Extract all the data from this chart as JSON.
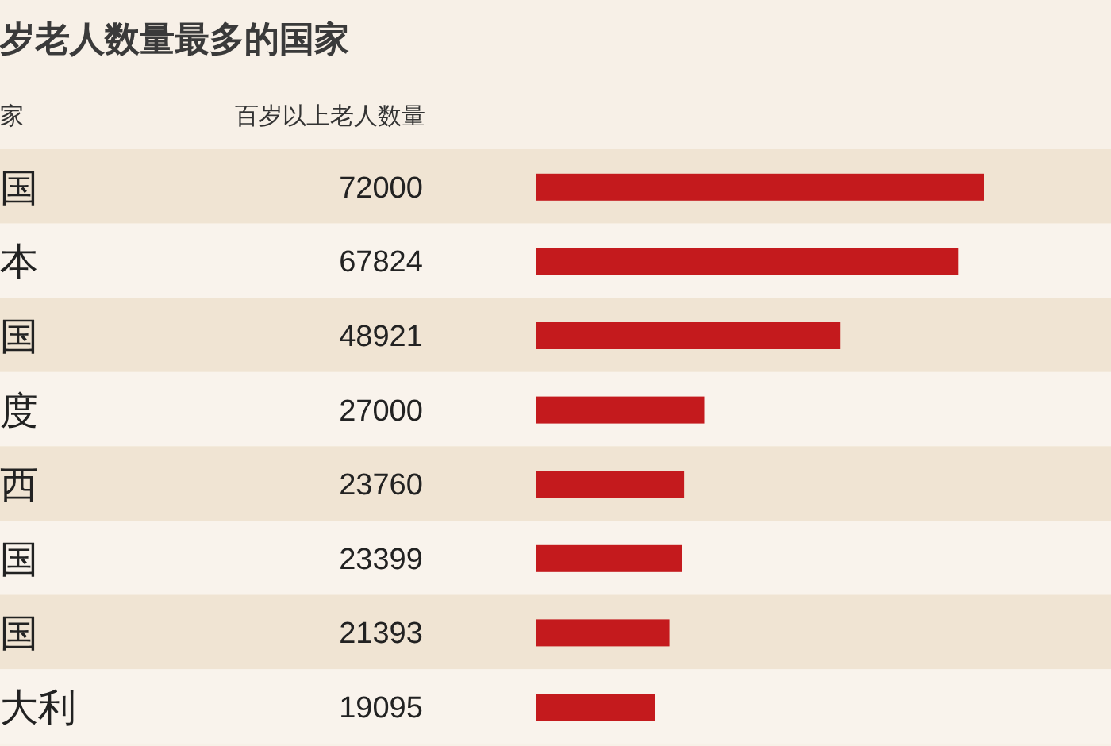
{
  "chart_data": {
    "type": "bar",
    "orientation": "horizontal",
    "title": "岁老人数量最多的国家",
    "ylabel": "家",
    "xlabel": "百岁以上老人数量",
    "categories": [
      "国",
      "本",
      "国",
      "度",
      "西",
      "国",
      "国",
      "大利"
    ],
    "values": [
      72000,
      67824,
      48921,
      27000,
      23760,
      23399,
      21393,
      19095
    ],
    "color": "#c41a1d",
    "data_labels": true
  }
}
